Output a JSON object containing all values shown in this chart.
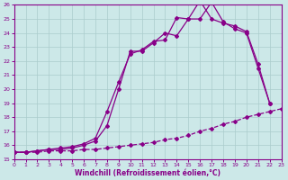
{
  "xlabel": "Windchill (Refroidissement éolien,°C)",
  "xlim": [
    0,
    23
  ],
  "ylim": [
    15,
    26
  ],
  "xticks": [
    0,
    1,
    2,
    3,
    4,
    5,
    6,
    7,
    8,
    9,
    10,
    11,
    12,
    13,
    14,
    15,
    16,
    17,
    18,
    19,
    20,
    21,
    22,
    23
  ],
  "yticks": [
    15,
    16,
    17,
    18,
    19,
    20,
    21,
    22,
    23,
    24,
    25,
    26
  ],
  "bg_color": "#cce8e8",
  "grid_color": "#aacccc",
  "line_color": "#880088",
  "line1_x": [
    0,
    1,
    2,
    3,
    4,
    5,
    6,
    7,
    8,
    9,
    10,
    11,
    12,
    13,
    14,
    15,
    16,
    17,
    18,
    19,
    20,
    21,
    22,
    23
  ],
  "line1_y": [
    15.5,
    15.5,
    15.5,
    15.6,
    15.6,
    15.6,
    15.7,
    15.7,
    15.8,
    15.9,
    16.0,
    16.1,
    16.2,
    16.4,
    16.5,
    16.7,
    17.0,
    17.2,
    17.5,
    17.7,
    18.0,
    18.2,
    18.4,
    18.6
  ],
  "line2_x": [
    0,
    1,
    2,
    3,
    4,
    5,
    6,
    7,
    8,
    9,
    10,
    11,
    12,
    13,
    14,
    15,
    16,
    17,
    18,
    19,
    20,
    21,
    22
  ],
  "line2_y": [
    15.5,
    15.5,
    15.6,
    15.7,
    15.7,
    15.8,
    16.0,
    16.3,
    17.4,
    20.0,
    22.7,
    22.7,
    23.3,
    24.0,
    23.8,
    25.0,
    25.0,
    26.2,
    24.8,
    24.3,
    24.0,
    21.5,
    19.0
  ],
  "line3_x": [
    0,
    1,
    2,
    3,
    4,
    5,
    6,
    7,
    8,
    9,
    10,
    11,
    12,
    13,
    14,
    15,
    16,
    17,
    18,
    19,
    20,
    21,
    22
  ],
  "line3_y": [
    15.5,
    15.5,
    15.6,
    15.7,
    15.8,
    15.9,
    16.1,
    16.5,
    18.4,
    20.5,
    22.5,
    22.8,
    23.4,
    23.5,
    25.1,
    25.0,
    26.3,
    25.0,
    24.7,
    24.5,
    24.1,
    21.8,
    19.0
  ]
}
